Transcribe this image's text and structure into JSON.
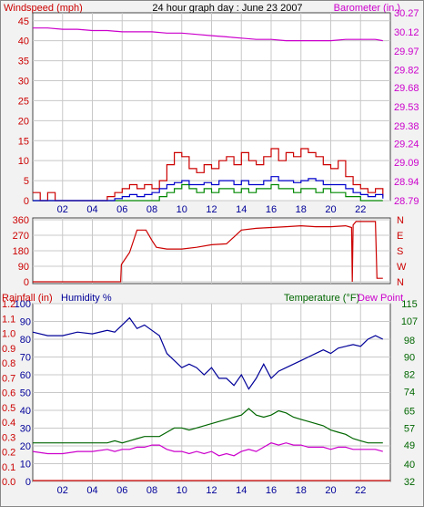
{
  "colors": {
    "windspeed": "#cc0000",
    "barometer": "#cc00cc",
    "wind_avg": "#0000cc",
    "wind_low": "#008800",
    "direction": "#cc0000",
    "rainfall": "#cc0000",
    "humidity": "#000099",
    "temperature": "#006600",
    "dewpoint": "#cc00cc",
    "grid": "#c8c8c8",
    "plot_bg": "#ffffff"
  },
  "chart_data": [
    {
      "type": "line",
      "title": "24 hour graph day : June 23 2007",
      "left_label": "Windspeed (mph)",
      "right_label": "Barometer (in.)",
      "x_ticks": [
        "02",
        "04",
        "06",
        "08",
        "10",
        "12",
        "14",
        "16",
        "18",
        "20",
        "22"
      ],
      "xlim": [
        0,
        24
      ],
      "left_ticks": [
        "0",
        "5",
        "10",
        "15",
        "20",
        "25",
        "30",
        "35",
        "40",
        "45"
      ],
      "ylim_left": [
        0,
        47
      ],
      "right_ticks": [
        "28.79",
        "28.94",
        "29.09",
        "29.24",
        "29.38",
        "29.53",
        "29.68",
        "29.82",
        "29.97",
        "30.12",
        "30.27"
      ],
      "ylim_right": [
        28.79,
        30.27
      ],
      "series": [
        {
          "name": "Windspeed",
          "axis": "left",
          "x": [
            0,
            0.5,
            1.0,
            1.5,
            2.0,
            2.5,
            3.0,
            3.5,
            4.0,
            4.5,
            5.0,
            5.5,
            6.0,
            6.5,
            7.0,
            7.5,
            8.0,
            8.5,
            9.0,
            9.5,
            10.0,
            10.5,
            11.0,
            11.5,
            12.0,
            12.5,
            13.0,
            13.5,
            14.0,
            14.5,
            15.0,
            15.5,
            16.0,
            16.5,
            17.0,
            17.5,
            18.0,
            18.5,
            19.0,
            19.5,
            20.0,
            20.5,
            21.0,
            21.5,
            22.0,
            22.5,
            23.0,
            23.5
          ],
          "values": [
            2,
            0,
            2,
            0,
            0,
            0,
            0,
            0,
            0,
            0,
            1,
            2,
            3,
            4,
            3,
            4,
            3,
            5,
            9,
            12,
            11,
            8,
            7,
            9,
            8,
            10,
            11,
            9,
            12,
            10,
            9,
            11,
            13,
            10,
            12,
            11,
            13,
            12,
            11,
            9,
            8,
            10,
            6,
            4,
            3,
            2,
            3,
            1
          ]
        },
        {
          "name": "Wind Avg",
          "axis": "left",
          "x": [
            0,
            1,
            2,
            3,
            4,
            5,
            5.5,
            6,
            6.5,
            7,
            7.5,
            8,
            8.5,
            9,
            9.5,
            10,
            10.5,
            11,
            11.5,
            12,
            12.5,
            13,
            13.5,
            14,
            14.5,
            15,
            15.5,
            16,
            16.5,
            17,
            17.5,
            18,
            18.5,
            19,
            19.5,
            20,
            20.5,
            21,
            21.5,
            22,
            22.5,
            23,
            23.5
          ],
          "values": [
            0,
            0,
            0,
            0,
            0,
            0,
            0.5,
            1,
            1.5,
            1,
            1.5,
            2,
            3,
            4,
            4.5,
            5,
            4,
            4,
            4.5,
            4,
            5,
            5,
            4,
            5,
            4,
            4,
            5,
            6,
            5,
            5,
            4.5,
            5,
            5.5,
            5,
            4,
            4,
            4,
            3,
            2,
            1.5,
            1,
            1.5,
            0.5
          ]
        },
        {
          "name": "Wind Low",
          "axis": "left",
          "x": [
            0,
            2,
            4,
            6,
            7,
            8,
            8.5,
            9,
            9.5,
            10,
            10.5,
            11,
            11.5,
            12,
            12.5,
            13,
            13.5,
            14,
            14.5,
            15,
            15.5,
            16,
            16.5,
            17,
            17.5,
            18,
            18.5,
            19,
            19.5,
            20,
            20.5,
            21,
            21.5,
            22,
            23,
            23.5
          ],
          "values": [
            0,
            0,
            0,
            0,
            0,
            0,
            1,
            2,
            3,
            4,
            3,
            2,
            3,
            2,
            3,
            3,
            2,
            3,
            2,
            3,
            3,
            4,
            3,
            3,
            2,
            3,
            3,
            2,
            3,
            2,
            2,
            1,
            1,
            0,
            0,
            0
          ]
        },
        {
          "name": "Barometer",
          "axis": "right",
          "x": [
            0,
            1,
            2,
            3,
            4,
            5,
            6,
            7,
            8,
            9,
            10,
            11,
            12,
            13,
            14,
            15,
            16,
            17,
            18,
            19,
            20,
            21,
            22,
            23,
            23.5
          ],
          "values": [
            30.15,
            30.15,
            30.14,
            30.14,
            30.13,
            30.13,
            30.12,
            30.12,
            30.12,
            30.11,
            30.11,
            30.1,
            30.09,
            30.08,
            30.07,
            30.06,
            30.06,
            30.05,
            30.05,
            30.05,
            30.05,
            30.06,
            30.06,
            30.06,
            30.05
          ]
        }
      ]
    },
    {
      "type": "line",
      "left_ticks": [
        "0",
        "90",
        "180",
        "270",
        "360"
      ],
      "ylim_left": [
        0,
        360
      ],
      "right_ticks": [
        "N",
        "W",
        "S",
        "E",
        "N"
      ],
      "xlim": [
        0,
        24
      ],
      "series": [
        {
          "name": "Wind Direction",
          "x": [
            0,
            5.9,
            5.95,
            6.5,
            7.0,
            7.2,
            7.6,
            8.0,
            8.3,
            9.0,
            10.0,
            11.0,
            12.0,
            13.0,
            13.5,
            14.0,
            15.0,
            16.0,
            17.0,
            18.0,
            19.0,
            20.0,
            21.0,
            21.4,
            21.45,
            21.5,
            21.7,
            22.5,
            23.0,
            23.1,
            23.5
          ],
          "values": [
            0,
            0,
            100,
            170,
            300,
            300,
            300,
            240,
            200,
            190,
            190,
            200,
            215,
            220,
            260,
            300,
            310,
            315,
            320,
            325,
            320,
            320,
            325,
            315,
            0,
            330,
            350,
            350,
            350,
            20,
            20
          ]
        }
      ]
    },
    {
      "type": "line",
      "left_label_1": "Rainfall (in)",
      "left_label_2": "Humidity %",
      "right_label_1": "Temperature (°F)",
      "right_label_2": "Dew Point",
      "xlim": [
        0,
        24
      ],
      "rain_ticks": [
        "0.0",
        "0.1",
        "0.2",
        "0.3",
        "0.4",
        "0.5",
        "0.6",
        "0.7",
        "0.8",
        "0.9",
        "1.0",
        "1.1",
        "1.2"
      ],
      "humidity_ticks": [
        "0",
        "10",
        "20",
        "30",
        "40",
        "50",
        "60",
        "70",
        "80",
        "90",
        "100"
      ],
      "ylim_left": [
        0,
        100
      ],
      "right_ticks": [
        "32",
        "40",
        "49",
        "57",
        "65",
        "74",
        "82",
        "90",
        "98",
        "107",
        "115"
      ],
      "ylim_right": [
        32,
        115
      ],
      "series": [
        {
          "name": "Humidity",
          "axis": "left",
          "x": [
            0,
            1,
            2,
            3,
            4,
            5,
            5.5,
            6,
            6.5,
            7,
            7.5,
            8,
            8.5,
            9,
            9.5,
            10,
            10.5,
            11,
            11.5,
            12,
            12.5,
            13,
            13.5,
            14,
            14.5,
            15,
            15.5,
            16,
            16.5,
            17,
            17.5,
            18,
            18.5,
            19,
            19.5,
            20,
            20.5,
            21,
            21.5,
            22,
            22.5,
            23,
            23.5
          ],
          "values": [
            84,
            82,
            82,
            84,
            83,
            85,
            84,
            88,
            92,
            86,
            88,
            85,
            82,
            72,
            68,
            64,
            66,
            64,
            60,
            64,
            58,
            58,
            54,
            60,
            52,
            58,
            66,
            58,
            62,
            64,
            66,
            68,
            70,
            72,
            74,
            72,
            75,
            76,
            77,
            76,
            80,
            82,
            80
          ]
        },
        {
          "name": "Temperature",
          "axis": "right",
          "x": [
            0,
            1,
            2,
            3,
            4,
            5,
            5.5,
            6,
            6.5,
            7,
            7.5,
            8,
            8.5,
            9,
            9.5,
            10,
            10.5,
            11,
            11.5,
            12,
            12.5,
            13,
            13.5,
            14,
            14.5,
            15,
            15.5,
            16,
            16.5,
            17,
            17.5,
            18,
            18.5,
            19,
            19.5,
            20,
            20.5,
            21,
            21.5,
            22,
            22.5,
            23,
            23.5
          ],
          "values": [
            50,
            50,
            50,
            50,
            50,
            50,
            51,
            50,
            51,
            52,
            53,
            53,
            53,
            55,
            57,
            57,
            56,
            57,
            58,
            59,
            60,
            61,
            62,
            63,
            66,
            63,
            62,
            63,
            65,
            64,
            62,
            61,
            60,
            59,
            58,
            56,
            55,
            54,
            52,
            51,
            50,
            50,
            50
          ]
        },
        {
          "name": "Dew Point",
          "axis": "right",
          "x": [
            0,
            1,
            2,
            3,
            4,
            5,
            5.5,
            6,
            6.5,
            7,
            7.5,
            8,
            8.5,
            9,
            9.5,
            10,
            10.5,
            11,
            11.5,
            12,
            12.5,
            13,
            13.5,
            14,
            14.5,
            15,
            15.5,
            16,
            16.5,
            17,
            17.5,
            18,
            18.5,
            19,
            19.5,
            20,
            20.5,
            21,
            21.5,
            22,
            22.5,
            23,
            23.5
          ],
          "values": [
            46,
            45,
            45,
            46,
            46,
            47,
            46,
            47,
            47,
            48,
            48,
            49,
            49,
            47,
            46,
            46,
            45,
            46,
            45,
            46,
            44,
            45,
            44,
            46,
            47,
            46,
            48,
            50,
            49,
            50,
            49,
            49,
            48,
            48,
            48,
            47,
            48,
            48,
            47,
            47,
            47,
            47,
            46
          ]
        },
        {
          "name": "Rainfall",
          "axis": "left",
          "x": [
            0,
            24
          ],
          "values": [
            0,
            0
          ]
        }
      ]
    }
  ]
}
